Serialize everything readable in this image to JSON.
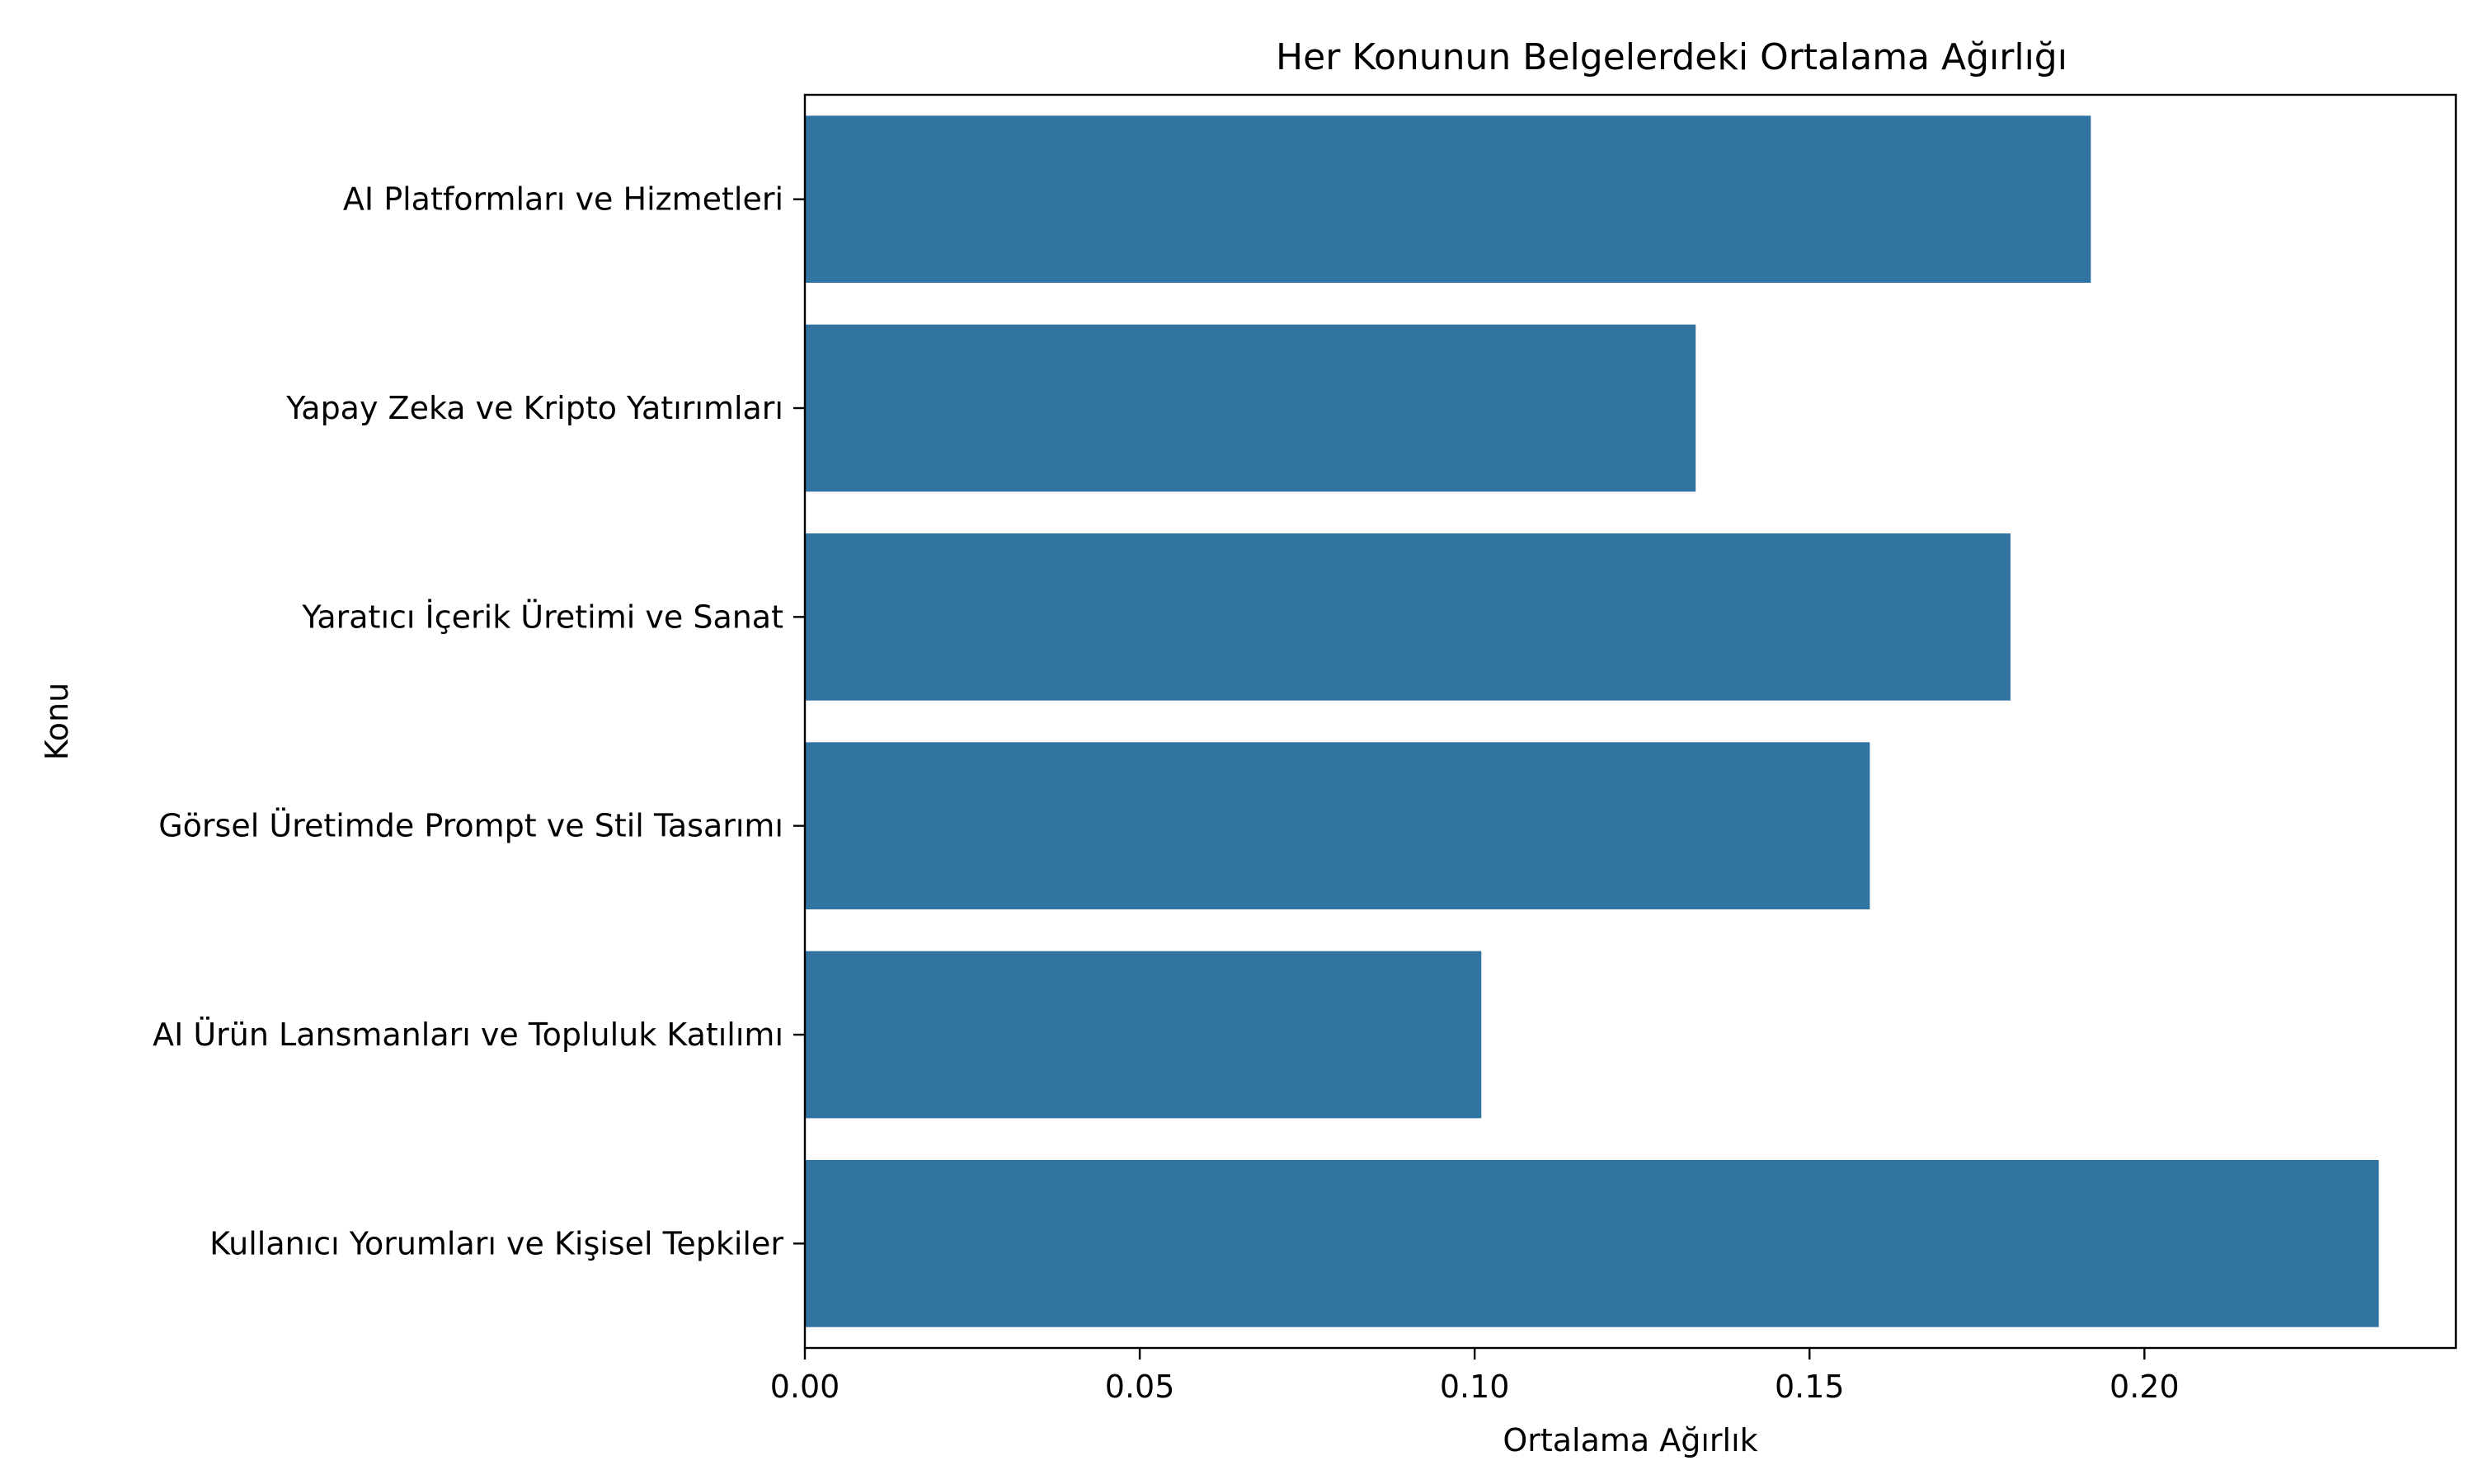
{
  "colors": {
    "bar": "#3274a1",
    "axis": "#000000",
    "background": "#ffffff"
  },
  "chart_data": {
    "type": "bar",
    "orientation": "horizontal",
    "title": "Her Konunun Belgelerdeki Ortalama Ağırlığı",
    "xlabel": "Ortalama Ağırlık",
    "ylabel": "Konu",
    "categories": [
      "AI Platformları ve Hizmetleri",
      "Yapay Zeka ve Kripto Yatırımları",
      "Yaratıcı İçerik Üretimi ve Sanat",
      "Görsel Üretimde Prompt ve Stil Tasarımı",
      "AI Ürün Lansmanları ve Topluluk Katılımı",
      "Kullanıcı Yorumları ve Kişisel Tepkiler"
    ],
    "values": [
      0.192,
      0.133,
      0.18,
      0.159,
      0.101,
      0.235
    ],
    "xlim": [
      0,
      0.2465
    ],
    "xticks": [
      0.0,
      0.05,
      0.1,
      0.15,
      0.2
    ],
    "xtick_labels": [
      "0.00",
      "0.05",
      "0.10",
      "0.15",
      "0.20"
    ],
    "grid": false,
    "legend": "none"
  }
}
